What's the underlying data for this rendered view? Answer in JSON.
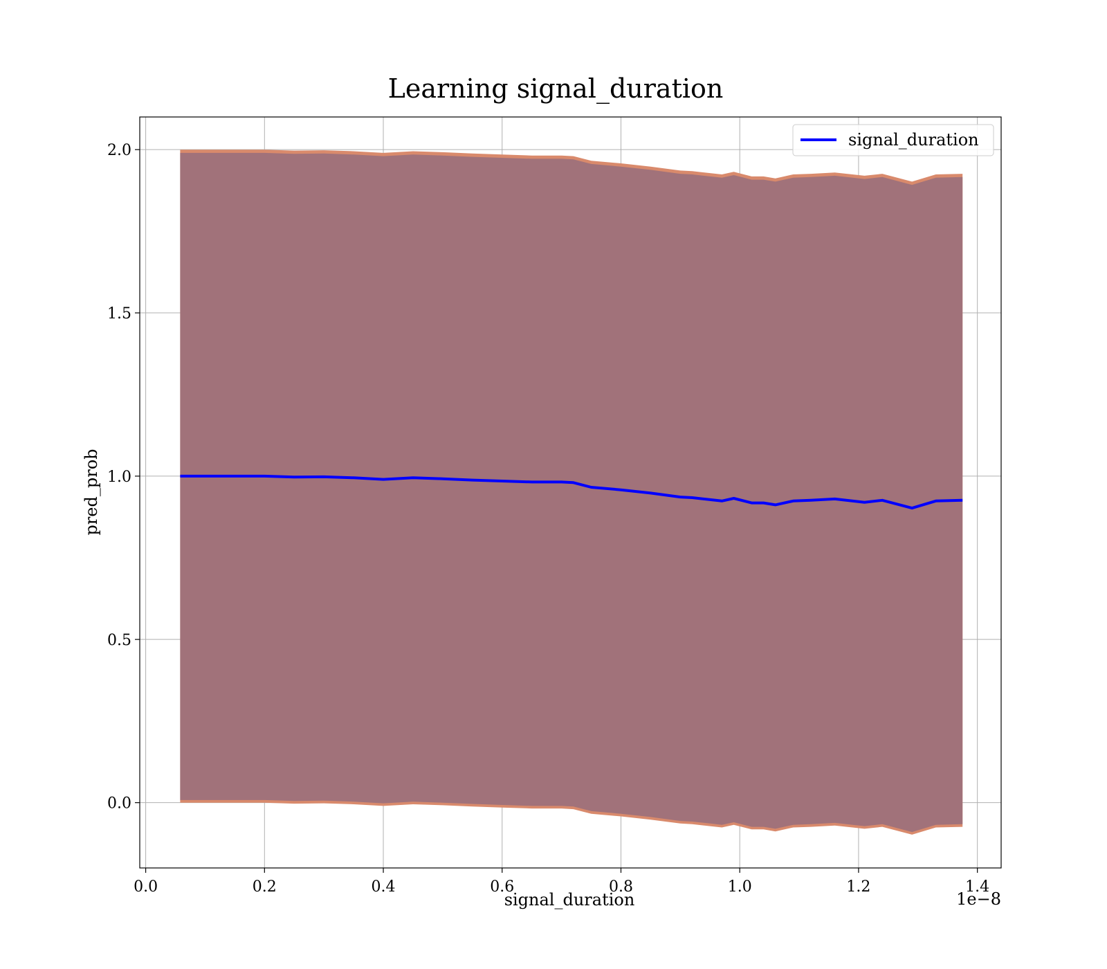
{
  "chart_data": {
    "type": "line",
    "title": "Learning signal_duration",
    "xlabel": "signal_duration",
    "ylabel": "pred_prob",
    "x_offset_label": "1e−8",
    "xlim": [
      -0.01,
      1.44
    ],
    "ylim": [
      -0.2,
      2.1
    ],
    "x_ticks": [
      {
        "value": 0.0,
        "label": "0.0"
      },
      {
        "value": 0.2,
        "label": "0.2"
      },
      {
        "value": 0.4,
        "label": "0.4"
      },
      {
        "value": 0.6,
        "label": "0.6"
      },
      {
        "value": 0.8,
        "label": "0.8"
      },
      {
        "value": 1.0,
        "label": "1.0"
      },
      {
        "value": 1.2,
        "label": "1.2"
      },
      {
        "value": 1.4,
        "label": "1.4"
      }
    ],
    "y_ticks": [
      {
        "value": 0.0,
        "label": "0.0"
      },
      {
        "value": 0.5,
        "label": "0.5"
      },
      {
        "value": 1.0,
        "label": "1.0"
      },
      {
        "value": 1.5,
        "label": "1.5"
      },
      {
        "value": 2.0,
        "label": "2.0"
      }
    ],
    "grid": true,
    "legend": {
      "position": "top-right",
      "entries": [
        "signal_duration"
      ]
    },
    "x": [
      0.058,
      0.1,
      0.15,
      0.2,
      0.25,
      0.3,
      0.35,
      0.4,
      0.45,
      0.5,
      0.55,
      0.6,
      0.65,
      0.7,
      0.72,
      0.75,
      0.8,
      0.85,
      0.9,
      0.92,
      0.95,
      0.97,
      0.99,
      1.02,
      1.04,
      1.06,
      1.09,
      1.12,
      1.16,
      1.21,
      1.24,
      1.29,
      1.33,
      1.375
    ],
    "series": [
      {
        "name": "signal_duration",
        "color": "#0000ff",
        "values": [
          1.0,
          1.0,
          1.0,
          1.0,
          0.997,
          0.998,
          0.995,
          0.99,
          0.995,
          0.992,
          0.988,
          0.985,
          0.982,
          0.982,
          0.98,
          0.966,
          0.958,
          0.948,
          0.936,
          0.934,
          0.928,
          0.924,
          0.932,
          0.918,
          0.918,
          0.912,
          0.924,
          0.926,
          0.93,
          0.92,
          0.926,
          0.902,
          0.924,
          0.926
        ]
      }
    ],
    "band_outer": {
      "color": "#d98a6c",
      "lower": [
        0.0,
        0.0,
        0.0,
        0.0,
        -0.003,
        -0.002,
        -0.005,
        -0.01,
        -0.005,
        -0.008,
        -0.012,
        -0.015,
        -0.018,
        -0.018,
        -0.02,
        -0.034,
        -0.042,
        -0.052,
        -0.064,
        -0.066,
        -0.072,
        -0.076,
        -0.068,
        -0.082,
        -0.082,
        -0.088,
        -0.076,
        -0.074,
        -0.07,
        -0.08,
        -0.074,
        -0.098,
        -0.076,
        -0.074
      ],
      "upper": [
        2.0,
        2.0,
        2.0,
        2.0,
        1.997,
        1.998,
        1.995,
        1.99,
        1.995,
        1.992,
        1.988,
        1.985,
        1.982,
        1.982,
        1.98,
        1.966,
        1.958,
        1.948,
        1.936,
        1.934,
        1.928,
        1.924,
        1.932,
        1.918,
        1.918,
        1.912,
        1.924,
        1.926,
        1.93,
        1.92,
        1.926,
        1.902,
        1.924,
        1.926
      ]
    },
    "band_inner": {
      "color": "#a1727a",
      "lower": [
        0.008,
        0.008,
        0.008,
        0.008,
        0.005,
        0.006,
        0.003,
        -0.002,
        0.003,
        0.0,
        -0.004,
        -0.007,
        -0.01,
        -0.01,
        -0.012,
        -0.026,
        -0.034,
        -0.044,
        -0.056,
        -0.058,
        -0.064,
        -0.068,
        -0.06,
        -0.074,
        -0.074,
        -0.08,
        -0.068,
        -0.066,
        -0.062,
        -0.072,
        -0.066,
        -0.09,
        -0.068,
        -0.066
      ],
      "upper": [
        1.99,
        1.99,
        1.99,
        1.99,
        1.987,
        1.988,
        1.985,
        1.98,
        1.985,
        1.982,
        1.978,
        1.975,
        1.972,
        1.972,
        1.97,
        1.956,
        1.948,
        1.938,
        1.926,
        1.924,
        1.918,
        1.914,
        1.922,
        1.908,
        1.908,
        1.902,
        1.914,
        1.916,
        1.92,
        1.91,
        1.916,
        1.892,
        1.914,
        1.916
      ]
    }
  }
}
